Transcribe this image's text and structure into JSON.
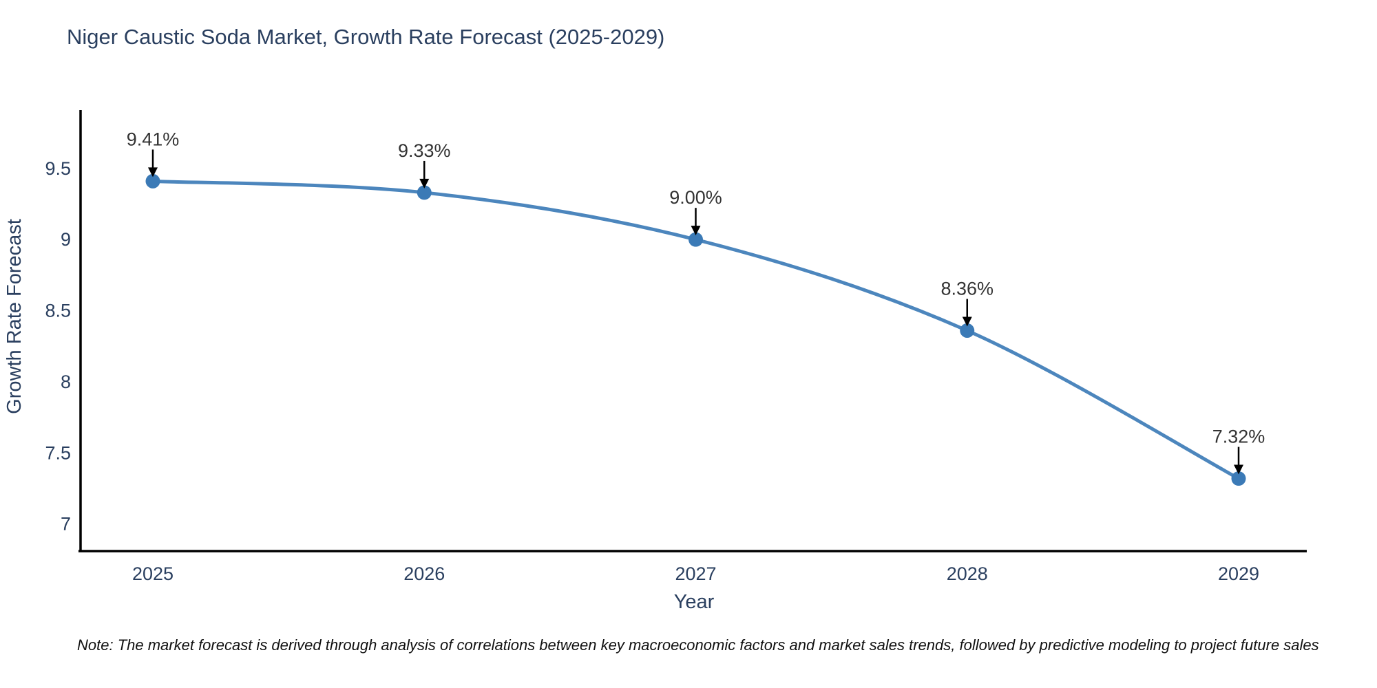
{
  "chart_data": {
    "type": "line",
    "title": "Niger Caustic Soda Market, Growth Rate Forecast (2025-2029)",
    "xlabel": "Year",
    "ylabel": "Growth Rate Forecast",
    "categories": [
      "2025",
      "2026",
      "2027",
      "2028",
      "2029"
    ],
    "values": [
      9.41,
      9.33,
      9.0,
      8.36,
      7.32
    ],
    "point_labels": [
      "9.41%",
      "9.33%",
      "9.00%",
      "8.36%",
      "7.32%"
    ],
    "y_ticks": [
      "9.5",
      "9",
      "8.5",
      "8",
      "7.5",
      "7"
    ],
    "y_tick_values": [
      9.5,
      9.0,
      8.5,
      8.0,
      7.5,
      7.0
    ],
    "ylim": [
      6.81,
      9.91
    ],
    "grid": false,
    "legend": false,
    "curve": "spline",
    "line_color": "#4c86bd",
    "marker_color": "#3b7ab6",
    "annotation_arrow_color": "#000000",
    "text_color": "#2a3f5f"
  },
  "note": "Note: The market forecast is derived through analysis of correlations between key macroeconomic factors and market sales trends, followed by predictive modeling to project future sales"
}
